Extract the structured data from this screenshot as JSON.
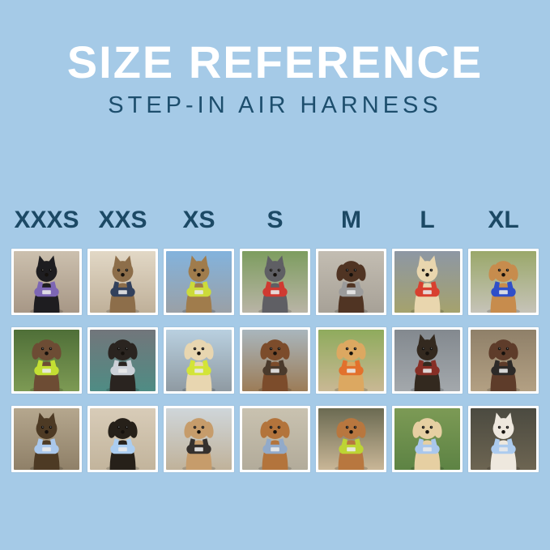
{
  "header": {
    "title": "SIZE REFERENCE",
    "subtitle": "STEP-IN AIR HARNESS"
  },
  "palette": {
    "background": "#a5cae7",
    "title_text": "#ffffff",
    "subtitle_text": "#1d4e6d",
    "size_label_text": "#1c4965",
    "tile_frame": "#ffffff"
  },
  "sizes": [
    "XXXS",
    "XXS",
    "XS",
    "S",
    "M",
    "L",
    "XL"
  ],
  "grid": {
    "columns": 7,
    "rows": 3,
    "cells": [
      {
        "size": "XXXS",
        "animal": "cat",
        "ears": "pointy",
        "description": "black kitten wearing purple harness indoors by stair railing",
        "fur": "#1e1d20",
        "harness": "#7d66b4",
        "bg_top": "#ccc0ae",
        "bg_bottom": "#a79786"
      },
      {
        "size": "XXS",
        "animal": "cat",
        "ears": "pointy",
        "description": "brown tabby cat wearing navy harness beside bright window",
        "fur": "#8d6e4a",
        "harness": "#32415c",
        "bg_top": "#e2d8c6",
        "bg_bottom": "#bfb099"
      },
      {
        "size": "XS",
        "animal": "cat",
        "ears": "pointy",
        "description": "bengal cat wearing neon yellow-green harness inside car with blue sky",
        "fur": "#a07c4c",
        "harness": "#ccdb3a",
        "bg_top": "#83b3dd",
        "bg_bottom": "#9aa0a6"
      },
      {
        "size": "S",
        "animal": "dog",
        "ears": "pointy",
        "description": "grey french bulldog wearing red harness on outdoor path with grass",
        "fur": "#5f5f64",
        "harness": "#cf3a31",
        "bg_top": "#7d9d5f",
        "bg_bottom": "#b9b4a6"
      },
      {
        "size": "M",
        "animal": "dog",
        "ears": "floppy",
        "description": "chocolate long-haired dachshund wearing grey harness on pavement",
        "fur": "#503423",
        "harness": "#9b9b9b",
        "bg_top": "#c3bdb2",
        "bg_bottom": "#a7a197"
      },
      {
        "size": "L",
        "animal": "dog",
        "ears": "pointy",
        "description": "cream shiba inu holding red ball wearing red harness on field under stormy sky",
        "fur": "#e9d6ae",
        "harness": "#d8402f",
        "bg_top": "#8d97a4",
        "bg_bottom": "#a5a26d"
      },
      {
        "size": "XL",
        "animal": "dog",
        "ears": "floppy",
        "description": "golden retriever wearing royal blue harness on sidewalk with yellow flowers",
        "fur": "#c78c4d",
        "harness": "#2f4fc9",
        "bg_top": "#9aa86a",
        "bg_bottom": "#c6c3b8"
      },
      {
        "size": "XXXS",
        "animal": "dog",
        "ears": "floppy",
        "description": "chocolate dapple dachshund puppy wearing neon green harness on grass",
        "fur": "#6d4c34",
        "harness": "#c3df33",
        "bg_top": "#4f6f38",
        "bg_bottom": "#7d9a54"
      },
      {
        "size": "XXS",
        "animal": "dog",
        "ears": "floppy",
        "description": "black puppy wearing light grey harness on teal blanket in car",
        "fur": "#2a2420",
        "harness": "#ccd1d8",
        "bg_top": "#72767b",
        "bg_bottom": "#4f8c84"
      },
      {
        "size": "XS",
        "animal": "dog",
        "ears": "floppy",
        "description": "cream long-haired dachshund wearing neon yellow harness on boat deck by water",
        "fur": "#e8d6b0",
        "harness": "#d3e438",
        "bg_top": "#b9d0e0",
        "bg_bottom": "#8f9aa2"
      },
      {
        "size": "S",
        "animal": "dog",
        "ears": "floppy",
        "description": "brown dachshund wearing dark harness on sunlit wooden dock",
        "fur": "#7c4c2b",
        "harness": "#4a3a2c",
        "bg_top": "#a9b6bd",
        "bg_bottom": "#9c7c57"
      },
      {
        "size": "M",
        "animal": "dog",
        "ears": "floppy",
        "description": "smiling golden retriever puppy wearing orange harness by green lawn",
        "fur": "#dca861",
        "harness": "#e2712d",
        "bg_top": "#8fab5d",
        "bg_bottom": "#c9b894"
      },
      {
        "size": "L",
        "animal": "dog",
        "ears": "pointy",
        "description": "black and tan dog wearing harness inside corrugated metal tunnel",
        "fur": "#33291f",
        "harness": "#872f26",
        "bg_top": "#83898f",
        "bg_bottom": "#a3a8ac"
      },
      {
        "size": "XL",
        "animal": "dog",
        "ears": "floppy",
        "description": "brown and white dog wearing black harness on weathered wooden steps",
        "fur": "#5e3c2a",
        "harness": "#2d2a28",
        "bg_top": "#8f8069",
        "bg_bottom": "#b3a083"
      },
      {
        "size": "XXXS",
        "animal": "dog",
        "ears": "pointy",
        "description": "yorkshire terrier puppy wearing light blue harness on sunny path",
        "fur": "#4d3a24",
        "harness": "#aac8ec",
        "bg_top": "#b5a78e",
        "bg_bottom": "#8f8068"
      },
      {
        "size": "XXS",
        "animal": "dog",
        "ears": "floppy",
        "description": "black and tan long-haired dachshund wearing light blue harness on beige car seat",
        "fur": "#262019",
        "harness": "#abcdf0",
        "bg_top": "#d8ccb8",
        "bg_bottom": "#c2b49c"
      },
      {
        "size": "XS",
        "animal": "dog",
        "ears": "floppy",
        "description": "apricot poodle puppy wearing black harness on wooden boardwalk",
        "fur": "#c69c6b",
        "harness": "#35302d",
        "bg_top": "#cfd6da",
        "bg_bottom": "#c0b29a"
      },
      {
        "size": "S",
        "animal": "dog",
        "ears": "floppy",
        "description": "red dachshund wearing blue-grey harness on concrete steps",
        "fur": "#b3743c",
        "harness": "#92aac9",
        "bg_top": "#c9c2b0",
        "bg_bottom": "#b2ab9a"
      },
      {
        "size": "M",
        "animal": "dog",
        "ears": "floppy",
        "description": "apricot doodle wearing neon green harness on sidewalk by bushes",
        "fur": "#b8773f",
        "harness": "#bdd434",
        "bg_top": "#6b6a52",
        "bg_bottom": "#c9b697"
      },
      {
        "size": "L",
        "animal": "dog",
        "ears": "floppy",
        "description": "cream golden retriever puppy wearing light blue harness and leash on grass",
        "fur": "#e6cfa2",
        "harness": "#a9c7ec",
        "bg_top": "#7c9a55",
        "bg_bottom": "#5d8344"
      },
      {
        "size": "XL",
        "animal": "dog",
        "ears": "pointy",
        "description": "white dog wearing light blue harness on night city street",
        "fur": "#eee8de",
        "harness": "#accbee",
        "bg_top": "#4b4a40",
        "bg_bottom": "#6d6552"
      }
    ]
  }
}
